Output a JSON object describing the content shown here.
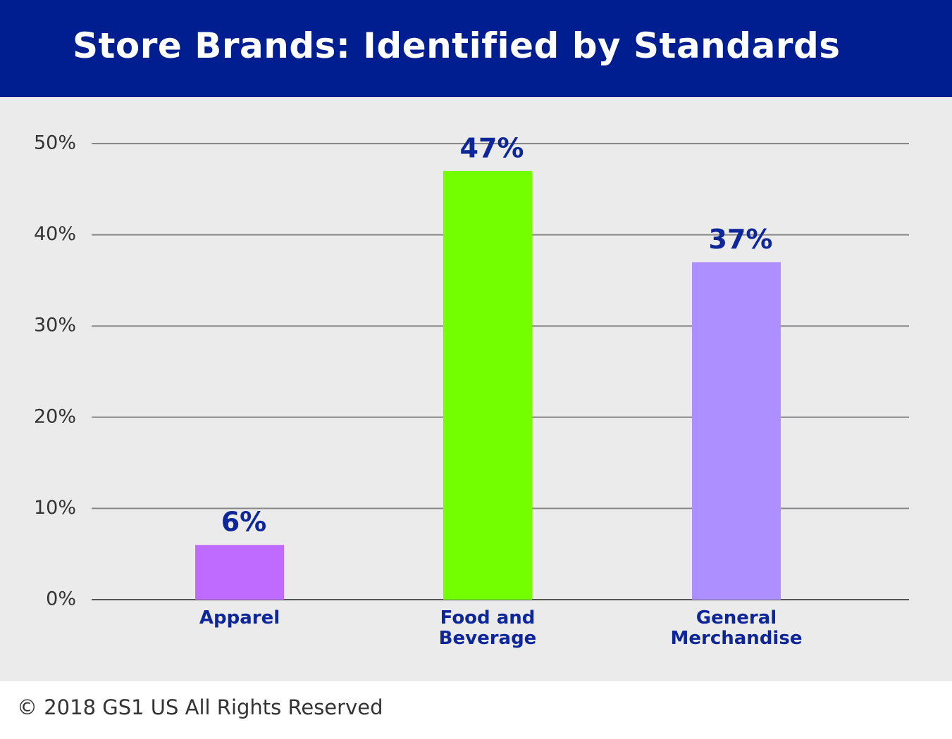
{
  "chart_data": {
    "type": "bar",
    "title": "Store Brands: Identified by Standards",
    "categories": [
      "Apparel",
      "Food and Beverage",
      "General Merchandise"
    ],
    "values": [
      6,
      47,
      37
    ],
    "value_labels": [
      "6%",
      "47%",
      "37%"
    ],
    "colors": [
      "#c06bff",
      "#73ff00",
      "#ad8fff"
    ],
    "ylim": [
      0,
      50
    ],
    "yticks": [
      {
        "value": 0,
        "label": "0%"
      },
      {
        "value": 10,
        "label": "10%"
      },
      {
        "value": 20,
        "label": "20%"
      },
      {
        "value": 30,
        "label": "30%"
      },
      {
        "value": 40,
        "label": "40%"
      },
      {
        "value": 50,
        "label": "50%"
      }
    ],
    "grid": true,
    "footer": "© 2018 GS1 US All Rights Reserved"
  }
}
